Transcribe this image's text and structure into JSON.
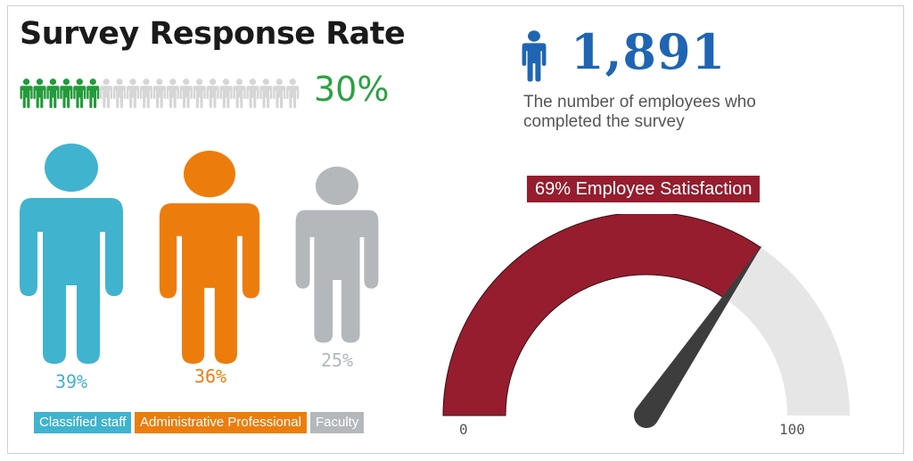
{
  "title": "Survey Response Rate",
  "response_rate": {
    "value": 30,
    "label": "30%",
    "total_icons": 21,
    "filled_icons": 6,
    "filled_color": "#239a3b",
    "empty_color": "#d6d6d6"
  },
  "employees": {
    "count": "1,891",
    "description": "The number of employees who completed the survey",
    "icon": "person-icon",
    "color": "#1f65b3"
  },
  "satisfaction": {
    "label": "69% Employee Satisfaction",
    "value": 69,
    "min": 0,
    "max": 100,
    "min_label": "0",
    "max_label": "100",
    "fill_color": "#951d2e",
    "track_color": "#e6e6e6",
    "needle_color": "#3d3d3d"
  },
  "chart_data": {
    "type": "pictograph",
    "categories": [
      "Classified staff",
      "Administrative Professional",
      "Faculty"
    ],
    "values": [
      39,
      36,
      25
    ],
    "labels": [
      "39%",
      "36%",
      "25%"
    ],
    "colors": [
      "#40b3cf",
      "#ec7d0d",
      "#b4b8bb"
    ]
  }
}
